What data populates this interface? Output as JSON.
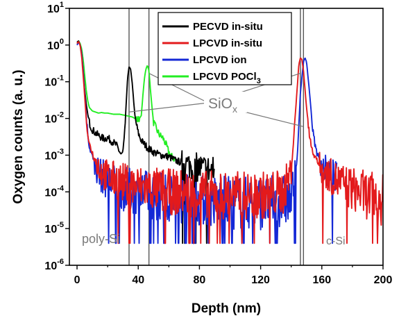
{
  "chart_data": {
    "type": "line",
    "xlabel": "Depth (nm)",
    "ylabel": "Oxygen counts (a. u.)",
    "xlim": [
      -5,
      200
    ],
    "ylim_log10": [
      -6,
      1
    ],
    "y_scale": "log",
    "x_ticks": [
      0,
      40,
      80,
      120,
      160,
      200
    ],
    "y_ticks": [
      {
        "base": "10",
        "exp": "1",
        "value": 10
      },
      {
        "base": "10",
        "exp": "0",
        "value": 1
      },
      {
        "base": "10",
        "exp": "-1",
        "value": 0.1
      },
      {
        "base": "10",
        "exp": "-2",
        "value": 0.01
      },
      {
        "base": "10",
        "exp": "-3",
        "value": 0.001
      },
      {
        "base": "10",
        "exp": "-4",
        "value": 0.0001
      },
      {
        "base": "10",
        "exp": "-5",
        "value": 1e-05
      },
      {
        "base": "10",
        "exp": "-6",
        "value": 1e-06
      }
    ],
    "legend_position": "top-right",
    "vertical_lines": [
      34,
      47,
      146,
      148
    ],
    "annotations": {
      "siox": {
        "base": "SiO",
        "sub": "x"
      },
      "poly": "poly-Si",
      "csi": "c-Si"
    },
    "series": [
      {
        "name": "PECVD in-situ",
        "legend": {
          "text": "PECVD in-situ",
          "sub": ""
        },
        "color": "#000000",
        "x": [
          0,
          1,
          2,
          3,
          4,
          5,
          6,
          7,
          8,
          9,
          10,
          12,
          14,
          16,
          18,
          20,
          22,
          24,
          26,
          28,
          29,
          30,
          31,
          32,
          33,
          34,
          35,
          36,
          37,
          38,
          40,
          42,
          44,
          46,
          48,
          50,
          55,
          60,
          65,
          70,
          75,
          80,
          85,
          90
        ],
        "y": [
          1.2,
          1.3,
          1.0,
          0.6,
          0.2,
          0.06,
          0.025,
          0.013,
          0.008,
          0.006,
          0.005,
          0.004,
          0.0035,
          0.003,
          0.0028,
          0.003,
          0.0025,
          0.0022,
          0.0018,
          0.0012,
          0.001,
          0.0012,
          0.003,
          0.02,
          0.12,
          0.26,
          0.22,
          0.1,
          0.03,
          0.01,
          0.004,
          0.0025,
          0.002,
          0.0016,
          0.0014,
          0.0012,
          0.001,
          0.0009,
          0.0007,
          0.0006,
          0.0005,
          0.00045,
          0.0004,
          0.00035
        ]
      },
      {
        "name": "LPCVD in-situ",
        "legend": {
          "text": "LPCVD  in-situ",
          "sub": ""
        },
        "color": "#e31a1c",
        "x": [
          0,
          1,
          2,
          3,
          4,
          5,
          6,
          7,
          8,
          10,
          12,
          15,
          20,
          30,
          40,
          50,
          60,
          80,
          100,
          120,
          135,
          140,
          143,
          145,
          146,
          147,
          148,
          150,
          152,
          155,
          160,
          170,
          180,
          190,
          200
        ],
        "y": [
          1.1,
          1.25,
          1.0,
          0.5,
          0.15,
          0.04,
          0.01,
          0.004,
          0.002,
          0.0012,
          0.0007,
          0.0004,
          0.00025,
          0.00018,
          0.00014,
          0.00012,
          0.0001,
          9e-05,
          8e-05,
          8e-05,
          0.0001,
          0.0004,
          0.02,
          0.3,
          0.45,
          0.4,
          0.2,
          0.02,
          0.003,
          0.001,
          0.0004,
          0.0002,
          0.00012,
          8e-05,
          6e-05
        ]
      },
      {
        "name": "LPCVD ion",
        "legend": {
          "text": "LPCVD ion",
          "sub": ""
        },
        "color": "#1428d6",
        "x": [
          0,
          1,
          2,
          3,
          4,
          5,
          6,
          7,
          8,
          10,
          12,
          15,
          20,
          30,
          40,
          50,
          60,
          80,
          100,
          120,
          140,
          144,
          146,
          148,
          149,
          150,
          152,
          154,
          156,
          160,
          165,
          170
        ],
        "y": [
          1.0,
          1.2,
          1.0,
          0.6,
          0.2,
          0.05,
          0.012,
          0.004,
          0.0018,
          0.0009,
          0.0005,
          0.0003,
          0.0002,
          0.00012,
          0.0001,
          8e-05,
          7e-05,
          6e-05,
          5e-05,
          5e-05,
          6e-05,
          0.001,
          0.05,
          0.35,
          0.45,
          0.35,
          0.05,
          0.005,
          0.0015,
          0.0005,
          0.0003,
          0.0002
        ]
      },
      {
        "name": "LPCVD POCl3",
        "legend": {
          "text": "LPCVD POCl",
          "sub": "3"
        },
        "color": "#22ee22",
        "x": [
          0,
          1,
          2,
          3,
          4,
          5,
          6,
          7,
          8,
          10,
          12,
          14,
          16,
          18,
          20,
          24,
          28,
          32,
          36,
          40,
          42,
          43,
          44,
          45,
          46,
          47,
          48,
          49,
          50,
          52,
          54,
          56,
          58,
          60,
          62,
          65
        ],
        "y": [
          1.1,
          1.3,
          1.1,
          0.8,
          0.4,
          0.15,
          0.06,
          0.03,
          0.02,
          0.016,
          0.015,
          0.014,
          0.0145,
          0.014,
          0.014,
          0.013,
          0.013,
          0.012,
          0.011,
          0.009,
          0.012,
          0.04,
          0.12,
          0.22,
          0.28,
          0.2,
          0.06,
          0.02,
          0.008,
          0.005,
          0.0035,
          0.003,
          0.002,
          0.0012,
          0.0009,
          0.0007
        ]
      }
    ]
  }
}
